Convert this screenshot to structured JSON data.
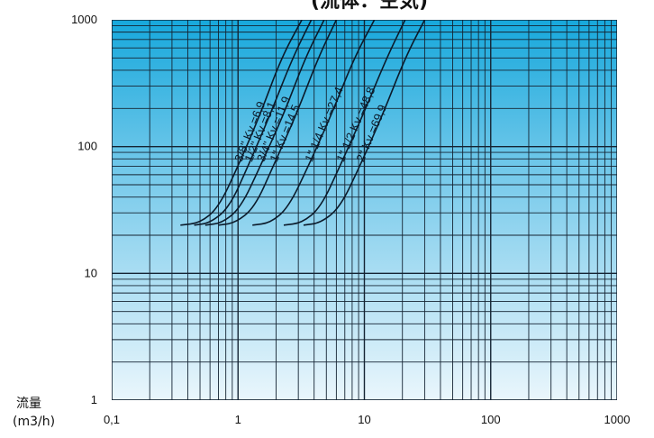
{
  "chart_data": {
    "type": "line",
    "title": "(流体：空気)",
    "ylabel_lines": [
      "流量",
      "(m3/h)"
    ],
    "xlabel": "",
    "xscale": "log",
    "yscale": "log",
    "xlim": [
      0.1,
      1000
    ],
    "ylim": [
      1,
      1000
    ],
    "x_ticks": [
      {
        "value": 0.1,
        "label": "0,1"
      },
      {
        "value": 1,
        "label": "1"
      },
      {
        "value": 10,
        "label": "10"
      },
      {
        "value": 100,
        "label": "100"
      },
      {
        "value": 1000,
        "label": "1000"
      }
    ],
    "y_ticks": [
      {
        "value": 1,
        "label": "1"
      },
      {
        "value": 10,
        "label": "10"
      },
      {
        "value": 100,
        "label": "100"
      },
      {
        "value": 1000,
        "label": "1000"
      }
    ],
    "grid": true,
    "background_gradient": [
      "#17a8dc",
      "#eaf6fc"
    ],
    "line_color": "#0b1a2a",
    "series": [
      {
        "label": "3/8\" Kv =6,9",
        "x": [
          0.35,
          0.5,
          0.7,
          1.0,
          1.5,
          2.2,
          3.2
        ],
        "y": [
          24,
          25,
          33,
          70,
          180,
          500,
          1000
        ]
      },
      {
        "label": "1/2\" Kv =8,1",
        "x": [
          0.45,
          0.6,
          0.85,
          1.2,
          1.8,
          2.7,
          3.8
        ],
        "y": [
          24,
          25,
          33,
          70,
          180,
          500,
          1000
        ]
      },
      {
        "label": "3/4\" Kv =11,9",
        "x": [
          0.55,
          0.75,
          1.05,
          1.5,
          2.3,
          3.4,
          4.8
        ],
        "y": [
          24,
          25,
          33,
          70,
          180,
          500,
          1000
        ]
      },
      {
        "label": "1\" Kv =14,5",
        "x": [
          0.7,
          0.95,
          1.35,
          1.9,
          2.9,
          4.3,
          6.0
        ],
        "y": [
          24,
          25,
          33,
          70,
          180,
          500,
          1000
        ]
      },
      {
        "label": "1\" 1/4 Kv =27,4",
        "x": [
          1.3,
          1.8,
          2.5,
          3.6,
          5.5,
          8.3,
          12
        ],
        "y": [
          24,
          25,
          33,
          70,
          180,
          500,
          1000
        ]
      },
      {
        "label": "1\" 1/2 Kv =48,8",
        "x": [
          2.3,
          3.2,
          4.5,
          6.4,
          9.8,
          15,
          21
        ],
        "y": [
          24,
          25,
          33,
          70,
          180,
          500,
          1000
        ]
      },
      {
        "label": "2\" Kv =69,9",
        "x": [
          3.3,
          4.5,
          6.4,
          9.2,
          14,
          21,
          30
        ],
        "y": [
          24,
          25,
          33,
          70,
          180,
          500,
          1000
        ]
      }
    ]
  }
}
